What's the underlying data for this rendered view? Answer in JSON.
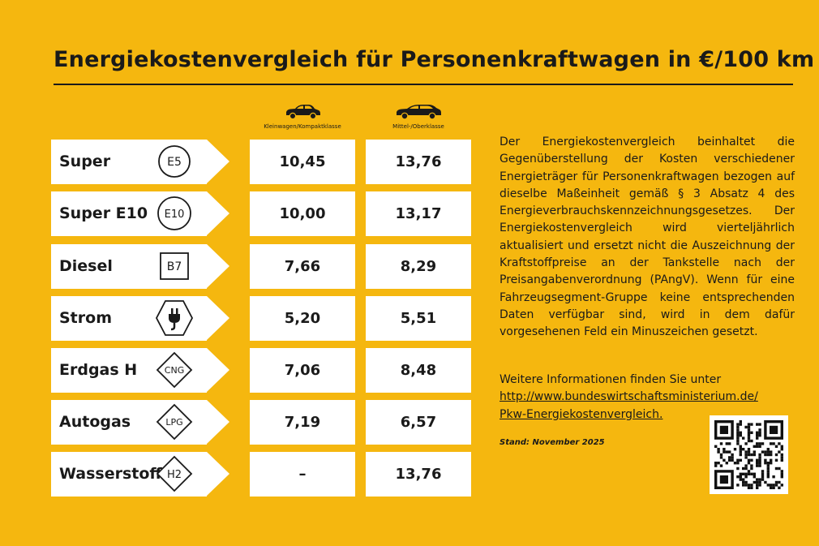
{
  "title": "Energiekostenvergleich für Personenkraftwagen in €/100 km",
  "columns": [
    {
      "label": "Kleinwagen/Kompaktklasse",
      "icon": "small-car-icon"
    },
    {
      "label": "Mittel-/Oberklasse",
      "icon": "large-car-icon"
    }
  ],
  "rows": [
    {
      "name": "Super",
      "badge": "E5",
      "badge_shape": "circle",
      "small": "10,45",
      "large": "13,76"
    },
    {
      "name": "Super E10",
      "badge": "E10",
      "badge_shape": "circle",
      "small": "10,00",
      "large": "13,17"
    },
    {
      "name": "Diesel",
      "badge": "B7",
      "badge_shape": "square",
      "small": "7,66",
      "large": "8,29"
    },
    {
      "name": "Strom",
      "badge": "",
      "badge_shape": "hexagon-plug",
      "small": "5,20",
      "large": "5,51"
    },
    {
      "name": "Erdgas H",
      "badge": "CNG",
      "badge_shape": "diamond",
      "small": "7,06",
      "large": "8,48"
    },
    {
      "name": "Autogas",
      "badge": "LPG",
      "badge_shape": "diamond",
      "small": "7,19",
      "large": "6,57"
    },
    {
      "name": "Wasserstoff",
      "badge": "H2",
      "badge_shape": "diamond",
      "small": "–",
      "large": "13,76"
    }
  ],
  "description": "Der Energiekostenvergleich beinhaltet die Gegenüberstellung der Kosten verschiedener Energieträger für Personenkraftwagen bezogen auf dieselbe Maßeinheit gemäß § 3 Absatz 4 des Energieverbrauchskennzeichnungsgesetzes. Der Energiekostenvergleich wird vierteljährlich aktualisiert und ersetzt nicht die Auszeichnung der Kraftstoffpreise an der Tankstelle nach der Preisangabenverordnung (PAngV). Wenn für eine Fahrzeugsegment-Gruppe keine entsprechenden Daten verfügbar sind, wird in dem dafür vorgesehenen Feld ein Minuszeichen gesetzt.",
  "more_info": "Weitere Informationen finden Sie unter",
  "link_line1": "http://www.bundeswirtschaftsministerium.de/",
  "link_line2": "Pkw-Energiekostenvergleich.",
  "stand": "Stand: November 2025",
  "qr_icon": "qr-code-icon",
  "colors": {
    "background": "#f5b70f",
    "cell": "#ffffff",
    "text": "#1a1a1a"
  }
}
